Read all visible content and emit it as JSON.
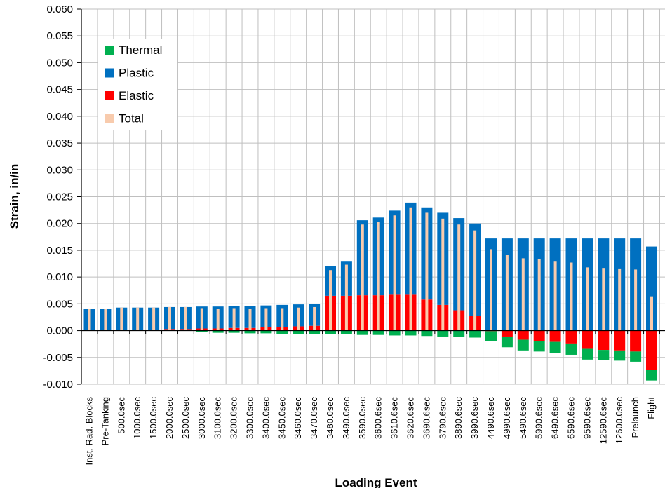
{
  "chart_data": {
    "type": "bar",
    "xlabel": "Loading Event",
    "ylabel": "Strain, in/in",
    "ylim": [
      -0.01,
      0.06
    ],
    "yticks": [
      "0.060",
      "0.055",
      "0.050",
      "0.045",
      "0.040",
      "0.035",
      "0.030",
      "0.025",
      "0.020",
      "0.015",
      "0.010",
      "0.005",
      "0.000",
      "-0.005",
      "-0.010"
    ],
    "grid": true,
    "legend_position": "top-left",
    "categories": [
      "Inst. Rad. Blocks",
      "Pre-Tanking",
      "500.0sec",
      "1000.0sec",
      "1500.0sec",
      "2000.0sec",
      "2500.0sec",
      "3000.0sec",
      "3100.0sec",
      "3200.0sec",
      "3300.0sec",
      "3400.0sec",
      "3450.0sec",
      "3460.0sec",
      "3470.0sec",
      "3480.0sec",
      "3490.0sec",
      "3590.0sec",
      "3600.6sec",
      "3610.6sec",
      "3620.6sec",
      "3690.6sec",
      "3790.6sec",
      "3890.6sec",
      "3990.6sec",
      "4490.6sec",
      "4990.6sec",
      "5490.6sec",
      "5990.6sec",
      "6490.6sec",
      "6590.6sec",
      "9590.6sec",
      "12590.6sec",
      "12600.0sec",
      "Prelaunch",
      "Flight"
    ],
    "series": [
      {
        "name": "Thermal",
        "color": "#00b050",
        "values": [
          0,
          0,
          0,
          0,
          0,
          0,
          0,
          -0.0003,
          -0.0004,
          -0.0004,
          -0.0005,
          -0.0005,
          -0.0006,
          -0.0006,
          -0.0006,
          -0.0007,
          -0.0007,
          -0.0008,
          -0.0008,
          -0.0009,
          -0.0009,
          -0.001,
          -0.0011,
          -0.0012,
          -0.0013,
          -0.0019,
          -0.002,
          -0.002,
          -0.002,
          -0.0021,
          -0.0021,
          -0.002,
          -0.0019,
          -0.0019,
          -0.0019,
          -0.002
        ]
      },
      {
        "name": "Plastic",
        "color": "#0070c0",
        "values": [
          0.0041,
          0.0041,
          0.0041,
          0.0041,
          0.0041,
          0.0041,
          0.0041,
          0.0041,
          0.0041,
          0.0041,
          0.0041,
          0.0041,
          0.0041,
          0.0041,
          0.0041,
          0.0055,
          0.0065,
          0.014,
          0.0145,
          0.0157,
          0.0172,
          0.0172,
          0.0172,
          0.0172,
          0.0172,
          0.0172,
          0.0172,
          0.0172,
          0.0172,
          0.0172,
          0.0172,
          0.0172,
          0.0172,
          0.0172,
          0.0172,
          0.0157
        ]
      },
      {
        "name": "Elastic",
        "color": "#ff0000",
        "values": [
          0,
          0,
          0.0002,
          0.0002,
          0.0002,
          0.0003,
          0.0003,
          0.0004,
          0.0004,
          0.0005,
          0.0005,
          0.0006,
          0.0007,
          0.0008,
          0.0009,
          0.0065,
          0.0065,
          0.0066,
          0.0066,
          0.0067,
          0.0067,
          0.0058,
          0.0048,
          0.0038,
          0.0028,
          -0.0001,
          -0.0011,
          -0.0017,
          -0.0019,
          -0.0021,
          -0.0024,
          -0.0034,
          -0.0036,
          -0.0037,
          -0.0039,
          -0.0073
        ]
      },
      {
        "name": "Total",
        "color": "#f8cbad",
        "values": [
          0.0041,
          0.0041,
          0.0043,
          0.0043,
          0.0043,
          0.0044,
          0.0044,
          0.0042,
          0.0041,
          0.0042,
          0.0041,
          0.0042,
          0.0042,
          0.0043,
          0.0044,
          0.0113,
          0.0123,
          0.0198,
          0.0203,
          0.0215,
          0.023,
          0.022,
          0.0209,
          0.0198,
          0.0187,
          0.0152,
          0.0141,
          0.0135,
          0.0133,
          0.013,
          0.0127,
          0.0118,
          0.0117,
          0.0116,
          0.0114,
          0.0064
        ]
      }
    ]
  }
}
